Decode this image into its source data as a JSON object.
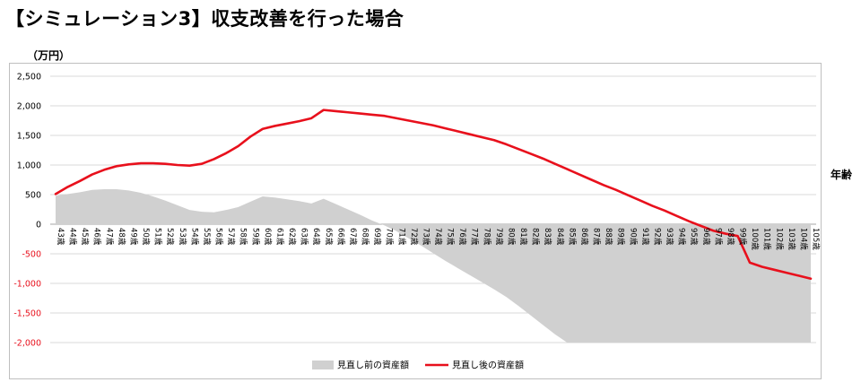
{
  "title": "【シミュレーション3】収支改善を行った場合",
  "unit_label": "（万円）",
  "right_axis_label": "年齢",
  "colors": {
    "area": "#d0d0d0",
    "line": "#e8101c",
    "negative_tick": "#e8101c",
    "positive_tick": "#000000",
    "grid": "#d9d9d9",
    "axis": "#a6a6a6"
  },
  "chart_data": {
    "type": "area+line",
    "ylim": [
      -2000,
      2500
    ],
    "y_ticks": [
      "2,500",
      "2,000",
      "1,500",
      "1,000",
      "500",
      "0",
      "-500",
      "-1,000",
      "-1,500",
      "-2,000"
    ],
    "y_tick_values": [
      2500,
      2000,
      1500,
      1000,
      500,
      0,
      -500,
      -1000,
      -1500,
      -2000
    ],
    "grid": true,
    "legend_position": "bottom",
    "categories": [
      "43歳",
      "44歳",
      "45歳",
      "46歳",
      "47歳",
      "48歳",
      "49歳",
      "50歳",
      "51歳",
      "52歳",
      "53歳",
      "54歳",
      "55歳",
      "56歳",
      "57歳",
      "58歳",
      "59歳",
      "60歳",
      "61歳",
      "62歳",
      "63歳",
      "64歳",
      "65歳",
      "66歳",
      "67歳",
      "68歳",
      "69歳",
      "70歳",
      "71歳",
      "72歳",
      "73歳",
      "74歳",
      "75歳",
      "76歳",
      "77歳",
      "78歳",
      "79歳",
      "80歳",
      "81歳",
      "82歳",
      "83歳",
      "84歳",
      "85歳",
      "86歳",
      "87歳",
      "88歳",
      "89歳",
      "90歳",
      "91歳",
      "92歳",
      "93歳",
      "94歳",
      "95歳",
      "96歳",
      "97歳",
      "98歳",
      "99歳",
      "100歳",
      "101歳",
      "102歳",
      "103歳",
      "104歳",
      "105歳"
    ],
    "series": [
      {
        "name": "見直し前の資産額",
        "type": "area",
        "values": [
          480,
          510,
          540,
          580,
          590,
          590,
          570,
          530,
          470,
          400,
          320,
          240,
          210,
          200,
          240,
          290,
          380,
          470,
          450,
          420,
          390,
          350,
          430,
          340,
          250,
          160,
          60,
          -20,
          -120,
          -240,
          -360,
          -490,
          -620,
          -740,
          -860,
          -980,
          -1100,
          -1230,
          -1380,
          -1540,
          -1700,
          -1860,
          -2000,
          -2000,
          -2000,
          -2000,
          -2000,
          -2000,
          -2000,
          -2000,
          -2000,
          -2000,
          -2000,
          -2000,
          -2000,
          -2000,
          -2000,
          -2000,
          -2000,
          -2000,
          -2000,
          -2000,
          -2000
        ]
      },
      {
        "name": "見直し後の資産額",
        "type": "line",
        "values": [
          510,
          630,
          730,
          840,
          920,
          980,
          1010,
          1030,
          1030,
          1020,
          1000,
          990,
          1020,
          1100,
          1200,
          1320,
          1480,
          1610,
          1660,
          1700,
          1740,
          1790,
          1930,
          1910,
          1890,
          1870,
          1850,
          1830,
          1790,
          1750,
          1710,
          1670,
          1620,
          1570,
          1520,
          1470,
          1420,
          1350,
          1270,
          1190,
          1110,
          1020,
          930,
          840,
          750,
          660,
          580,
          490,
          400,
          310,
          230,
          140,
          50,
          -30,
          -110,
          -160,
          -200,
          -650,
          -720,
          -770,
          -820,
          -870,
          -920
        ]
      }
    ]
  }
}
